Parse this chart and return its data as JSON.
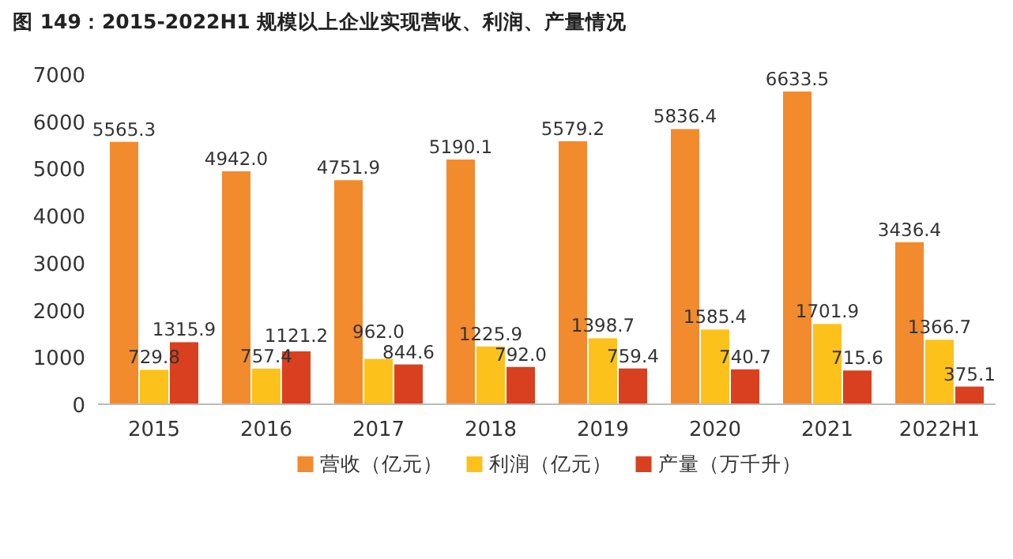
{
  "chart_data": {
    "type": "bar",
    "title": "图 149：2015-2022H1 规模以上企业实现营收、利润、产量情况",
    "categories": [
      "2015",
      "2016",
      "2017",
      "2018",
      "2019",
      "2020",
      "2021",
      "2022H1"
    ],
    "series": [
      {
        "name": "营收（亿元）",
        "color": "#f28a2e",
        "values": [
          5565.3,
          4942.0,
          4751.9,
          5190.1,
          5579.2,
          5836.4,
          6633.5,
          3436.4
        ],
        "value_labels": [
          "5565.3",
          "4942.0",
          "4751.9",
          "5190.1",
          "5579.2",
          "5836.4",
          "6633.5",
          "3436.4"
        ]
      },
      {
        "name": "利润（亿元）",
        "color": "#fcc21b",
        "values": [
          729.8,
          757.4,
          962.0,
          1225.9,
          1398.7,
          1585.4,
          1701.9,
          1366.7
        ],
        "value_labels": [
          "729.8",
          "757.4",
          "962.0",
          "1225.9",
          "1398.7",
          "1585.4",
          "1701.9",
          "1366.7"
        ]
      },
      {
        "name": "产量（万千升）",
        "color": "#d9401f",
        "values": [
          1315.9,
          1121.2,
          844.6,
          792.0,
          759.4,
          740.7,
          715.6,
          375.1
        ],
        "value_labels": [
          "1315.9",
          "1121.2",
          "844.6",
          "792.0",
          "759.4",
          "740.7",
          "715.6",
          "375.1"
        ]
      }
    ],
    "ylim": [
      0,
      7000
    ],
    "yticks": [
      0,
      1000,
      2000,
      3000,
      4000,
      5000,
      6000,
      7000
    ],
    "grid": false,
    "legend": "bottom"
  }
}
